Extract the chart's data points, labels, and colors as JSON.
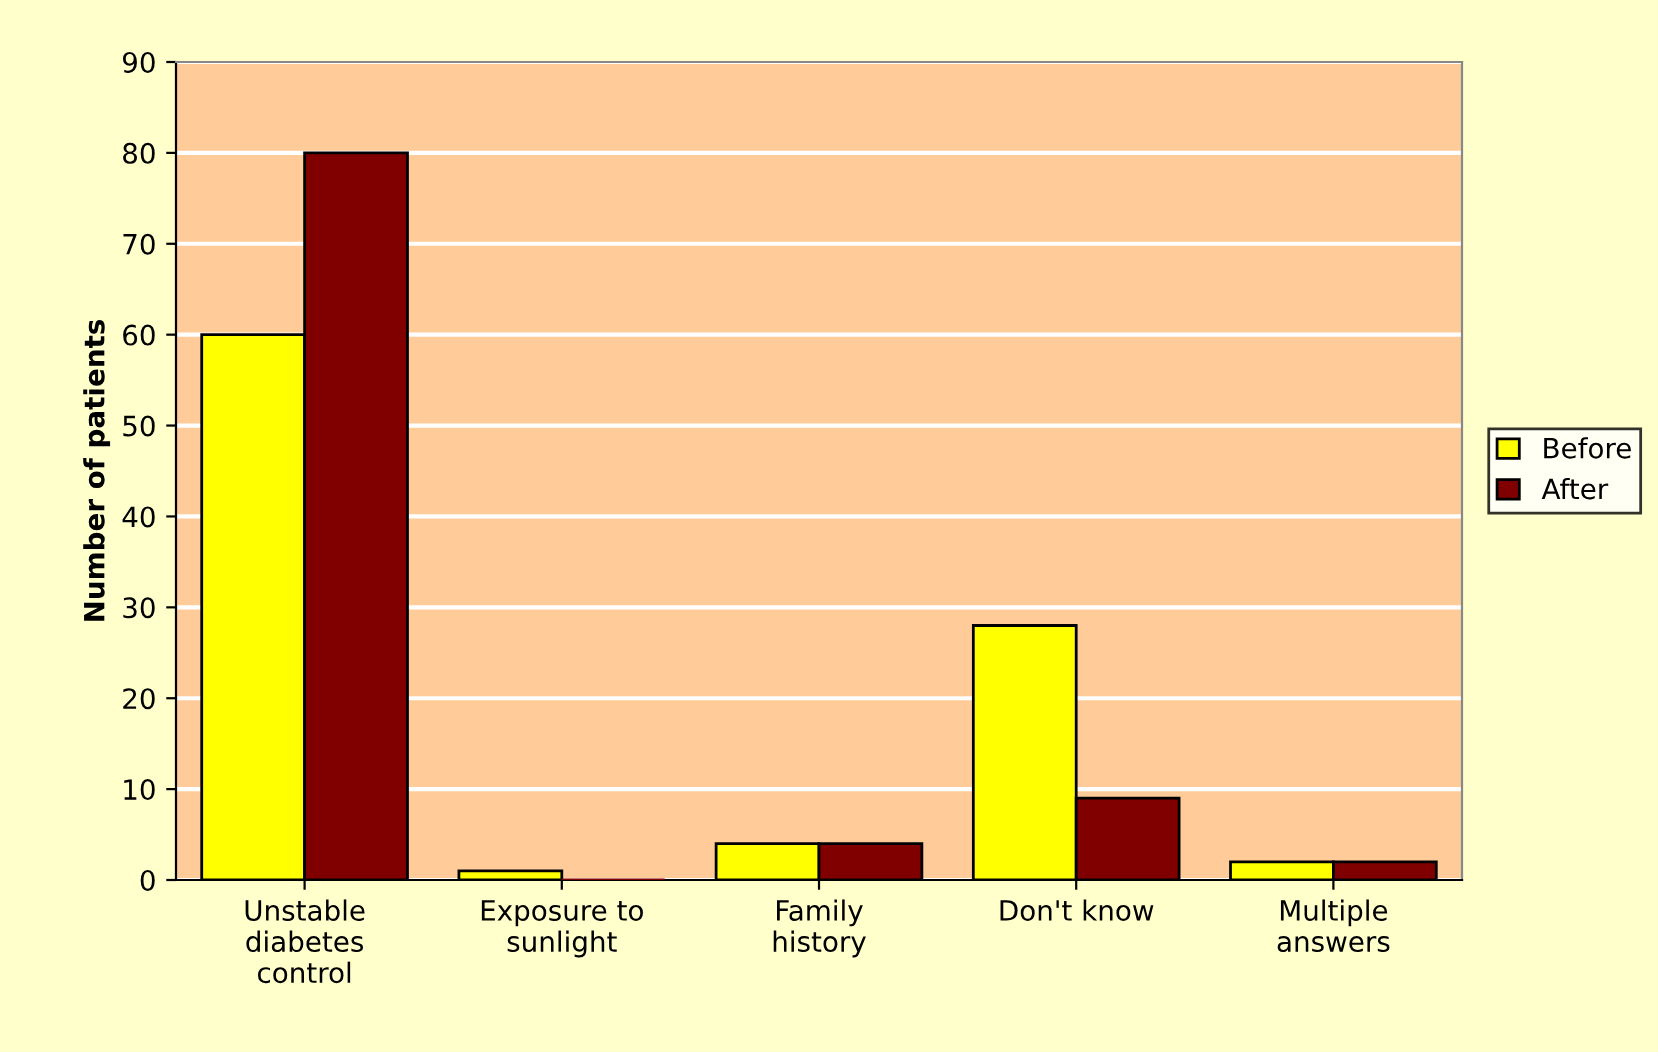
{
  "chart_data": {
    "type": "bar",
    "ylabel": "Number of patients",
    "categories": [
      "Unstable\ndiabetes\ncontrol",
      "Exposure to\nsunlight",
      "Family\nhistory",
      "Don't know",
      "Multiple\nanswers"
    ],
    "series": [
      {
        "name": "Before",
        "color": "#ffff00",
        "values": [
          60,
          1,
          4,
          28,
          2
        ]
      },
      {
        "name": "After",
        "color": "#800000",
        "values": [
          80,
          0,
          4,
          9,
          2
        ]
      }
    ],
    "ylim": [
      0,
      90
    ],
    "yticks": [
      0,
      10,
      20,
      30,
      40,
      50,
      60,
      70,
      80,
      90
    ],
    "grid": "y",
    "legend": "right"
  }
}
